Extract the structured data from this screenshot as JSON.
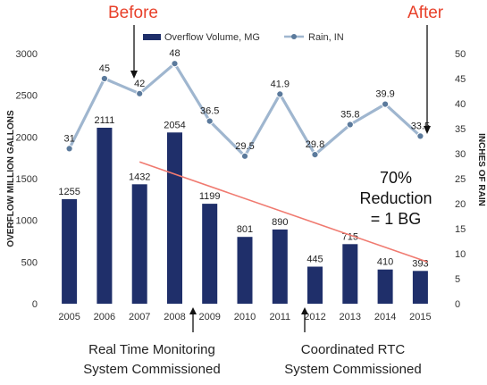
{
  "annotations": {
    "before": "Before",
    "after": "After",
    "reduction_line1": "70%",
    "reduction_line2": "Reduction",
    "reduction_line3": "= 1 BG",
    "note_left_line1": "Real Time Monitoring",
    "note_left_line2": "System Commissioned",
    "note_right_line1": "Coordinated RTC",
    "note_right_line2": "System Commissioned"
  },
  "colors": {
    "bar": "#1f2f6a",
    "rain_line": "#9fb6cf",
    "rain_marker": "#5b7a9c",
    "trend": "#f07a70",
    "highlight": "#e8402a"
  },
  "chart_data": {
    "type": "bar",
    "categories": [
      "2005",
      "2006",
      "2007",
      "2008",
      "2009",
      "2010",
      "2011",
      "2012",
      "2013",
      "2014",
      "2015"
    ],
    "series": [
      {
        "name": "Overflow Volume, MG",
        "type": "bar",
        "axis": "left",
        "values": [
          1255,
          2111,
          1432,
          2054,
          1199,
          801,
          890,
          445,
          715,
          410,
          393
        ],
        "labels": [
          "1255",
          "2111",
          "1432",
          "2054",
          "1199",
          "801",
          "890",
          "445",
          "715",
          "410",
          "393"
        ]
      },
      {
        "name": "Rain, IN",
        "type": "line",
        "axis": "right",
        "values": [
          31,
          45,
          42,
          48,
          36.5,
          29.5,
          41.9,
          29.8,
          35.8,
          39.9,
          33.5
        ],
        "labels": [
          "31",
          "45",
          "42",
          "48",
          "36.5",
          "29.5",
          "41.9",
          "29.8",
          "35.8",
          "39.9",
          "33.5"
        ]
      }
    ],
    "trendline": {
      "from": {
        "x": "2007",
        "y": 1700
      },
      "to": {
        "x": "2015",
        "y": 500
      }
    },
    "ylabel": "OVERFLOW MILLION GALLONS",
    "y2label": "INCHES OF RAIN",
    "ylim": [
      0,
      3000
    ],
    "y2lim": [
      0,
      50
    ],
    "yticks": [
      "0",
      "500",
      "1000",
      "1500",
      "2000",
      "2500",
      "3000"
    ],
    "y2ticks": [
      "0",
      "5",
      "10",
      "15",
      "20",
      "25",
      "30",
      "35",
      "40",
      "45",
      "50"
    ],
    "grid": false,
    "legend": "top-center"
  }
}
